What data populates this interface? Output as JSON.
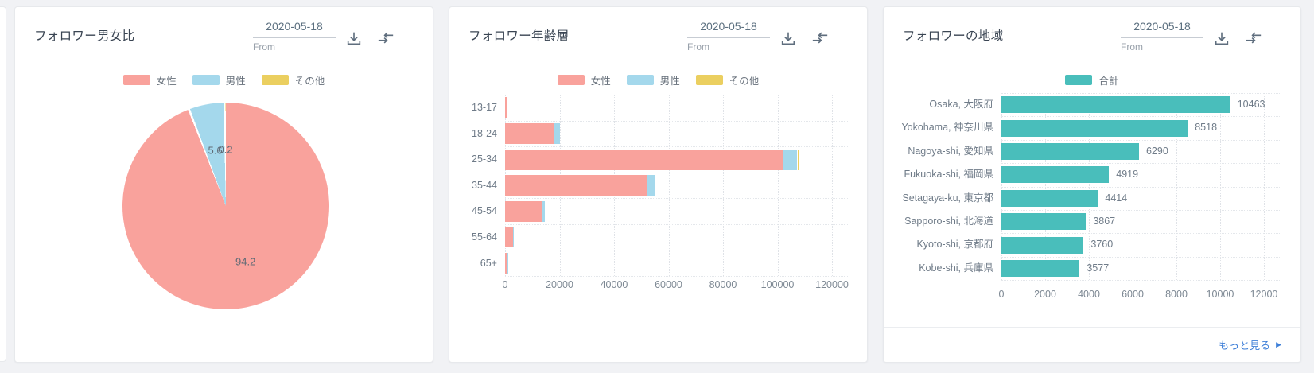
{
  "page": {
    "background_color": "#f1f2f5"
  },
  "colors": {
    "female": "#f9a29c",
    "male": "#a4d8ec",
    "other": "#ebcf60",
    "total": "#49bebb",
    "link": "#3e7fd8"
  },
  "cards": [
    {
      "title": "フォロワー男女比",
      "date": {
        "value": "2020-05-18",
        "label": "From"
      },
      "icons": [
        "download-icon",
        "compare-arrows-icon"
      ],
      "legend": [
        {
          "label": "女性",
          "color": "#f9a29c"
        },
        {
          "label": "男性",
          "color": "#a4d8ec"
        },
        {
          "label": "その他",
          "color": "#ebcf60"
        }
      ],
      "chart_data": {
        "type": "pie",
        "labels": [
          "女性",
          "男性",
          "その他"
        ],
        "values": [
          94.2,
          5.6,
          0.2
        ],
        "value_labels": [
          "94.2",
          "5.6",
          "0.2"
        ],
        "colors": [
          "#f9a29c",
          "#a4d8ec",
          "#ebcf60"
        ],
        "legend_position": "top"
      }
    },
    {
      "title": "フォロワー年齢層",
      "date": {
        "value": "2020-05-18",
        "label": "From"
      },
      "icons": [
        "download-icon",
        "compare-arrows-icon"
      ],
      "legend": [
        {
          "label": "女性",
          "color": "#f9a29c"
        },
        {
          "label": "男性",
          "color": "#a4d8ec"
        },
        {
          "label": "その他",
          "color": "#ebcf60"
        }
      ],
      "chart_data": {
        "type": "bar",
        "orientation": "horizontal",
        "stacked": true,
        "categories": [
          "13-17",
          "18-24",
          "25-34",
          "35-44",
          "45-54",
          "55-64",
          "65+"
        ],
        "series": [
          {
            "name": "女性",
            "color": "#f9a29c",
            "values": [
              700,
              17800,
              102000,
              52400,
              13700,
              2800,
              800
            ]
          },
          {
            "name": "男性",
            "color": "#a4d8ec",
            "values": [
              120,
              2300,
              5300,
              2500,
              900,
              250,
              100
            ]
          },
          {
            "name": "その他",
            "color": "#ebcf60",
            "values": [
              0,
              60,
              200,
              100,
              50,
              0,
              0
            ]
          }
        ],
        "xlim": [
          0,
          120000
        ],
        "xticks": [
          0,
          20000,
          40000,
          60000,
          80000,
          100000,
          120000
        ],
        "grid": "dotted",
        "legend_position": "top"
      }
    },
    {
      "title": "フォロワーの地域",
      "date": {
        "value": "2020-05-18",
        "label": "From"
      },
      "icons": [
        "download-icon",
        "compare-arrows-icon"
      ],
      "legend": [
        {
          "label": "合計",
          "color": "#49bebb"
        }
      ],
      "chart_data": {
        "type": "bar",
        "orientation": "horizontal",
        "stacked": false,
        "categories": [
          "Osaka, 大阪府",
          "Yokohama, 神奈川県",
          "Nagoya-shi, 愛知県",
          "Fukuoka-shi, 福岡県",
          "Setagaya-ku, 東京都",
          "Sapporo-shi, 北海道",
          "Kyoto-shi, 京都府",
          "Kobe-shi, 兵庫県"
        ],
        "values": [
          10463,
          8518,
          6290,
          4919,
          4414,
          3867,
          3760,
          3577
        ],
        "value_labels": [
          "10463",
          "8518",
          "6290",
          "4919",
          "4414",
          "3867",
          "3760",
          "3577"
        ],
        "color": "#49bebb",
        "xlim": [
          0,
          12000
        ],
        "xticks": [
          0,
          2000,
          4000,
          6000,
          8000,
          10000,
          12000
        ],
        "grid": "dotted",
        "legend_position": "top"
      },
      "footer_link": {
        "label": "もっと見る",
        "icon": "caret-right-icon"
      }
    }
  ]
}
